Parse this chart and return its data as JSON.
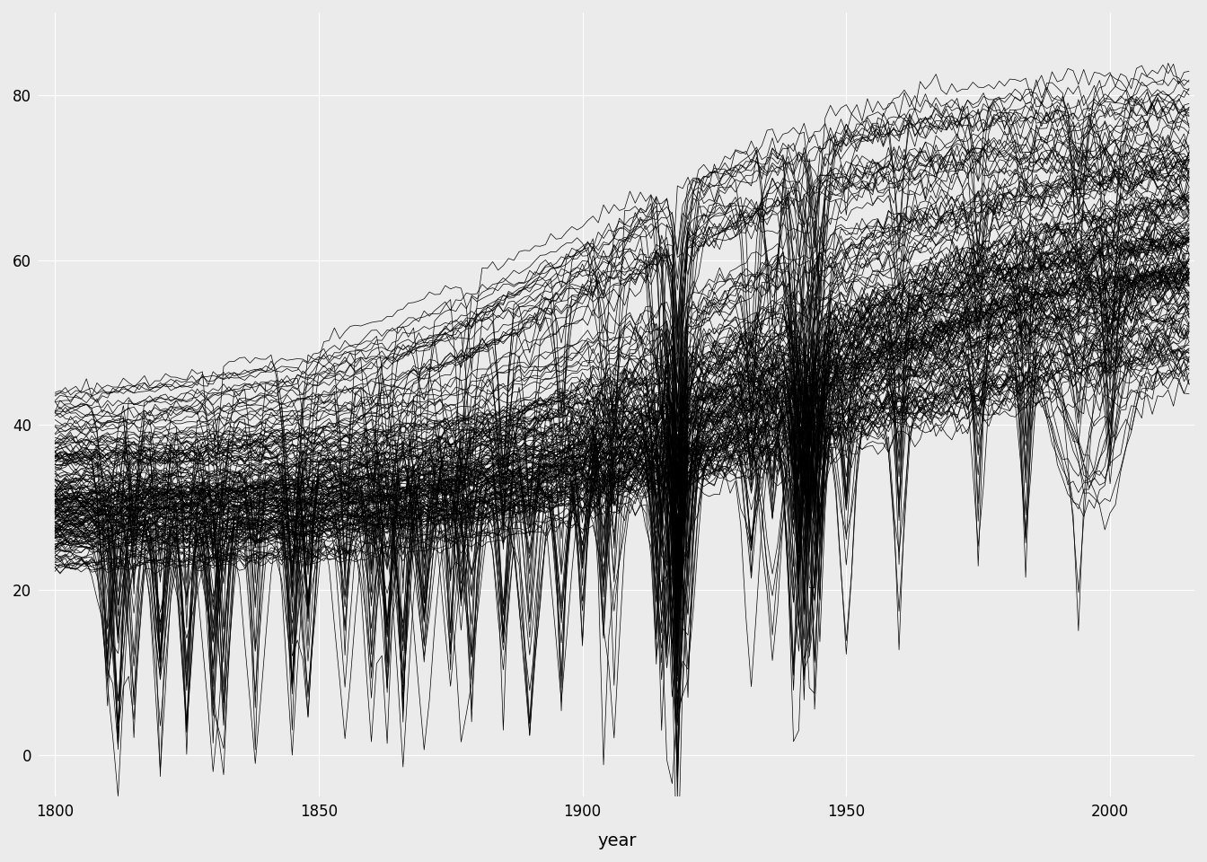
{
  "title": "",
  "xlabel": "year",
  "ylabel": "",
  "bg_color": "#EBEBEB",
  "line_color": "#000000",
  "line_alpha": 1.0,
  "line_width": 0.5,
  "xlim": [
    1797,
    2016
  ],
  "ylim": [
    -5,
    90
  ],
  "yticks": [
    0,
    20,
    40,
    60,
    80
  ],
  "xticks": [
    1800,
    1850,
    1900,
    1950,
    2000
  ],
  "grid_color": "#FFFFFF",
  "grid_linewidth": 0.8,
  "figsize": [
    13.44,
    9.6
  ],
  "dpi": 100
}
